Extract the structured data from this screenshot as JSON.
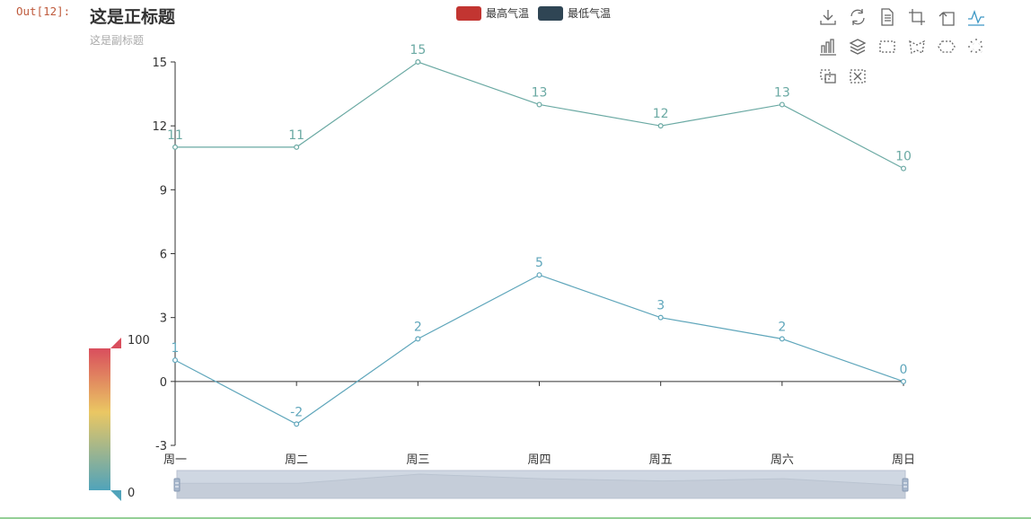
{
  "notebook": {
    "out_prompt": "Out[12]:"
  },
  "chart_data": {
    "type": "line",
    "title": "这是正标题",
    "subtitle": "这是副标题",
    "categories": [
      "周一",
      "周二",
      "周三",
      "周四",
      "周五",
      "周六",
      "周日"
    ],
    "series": [
      {
        "name": "最高气温",
        "values": [
          11,
          11,
          15,
          13,
          12,
          13,
          10
        ],
        "color": "#6aa9a3"
      },
      {
        "name": "最低气温",
        "values": [
          1,
          -2,
          2,
          5,
          3,
          2,
          0
        ],
        "color": "#5fa6bb"
      }
    ],
    "legend": [
      {
        "name": "最高气温",
        "color": "#c23531"
      },
      {
        "name": "最低气温",
        "color": "#2f4554"
      }
    ],
    "yticks": [
      -3,
      0,
      3,
      6,
      9,
      12,
      15
    ],
    "ylim": [
      -3,
      15
    ],
    "grid": false,
    "legend_position": "top",
    "visual_map": {
      "max_label": "100",
      "min_label": "0",
      "top_color": "#d94e5d",
      "mid_color": "#eac763",
      "bottom_color": "#50a3ba"
    },
    "data_zoom": {
      "start": 0,
      "end": 100
    }
  },
  "toolbox": {
    "icons": [
      "download-icon",
      "refresh-icon",
      "data-view-icon",
      "zoom-icon",
      "zoom-reset-icon",
      "line-type-icon",
      "bar-type-icon",
      "stack-icon",
      "rect-select-icon",
      "polygon-select-icon",
      "keep-select-icon",
      "clear-select-icon",
      "brush-mode-icon",
      "brush-clear-icon"
    ],
    "active_color": "#3e98c5",
    "icon_color": "#666666"
  }
}
